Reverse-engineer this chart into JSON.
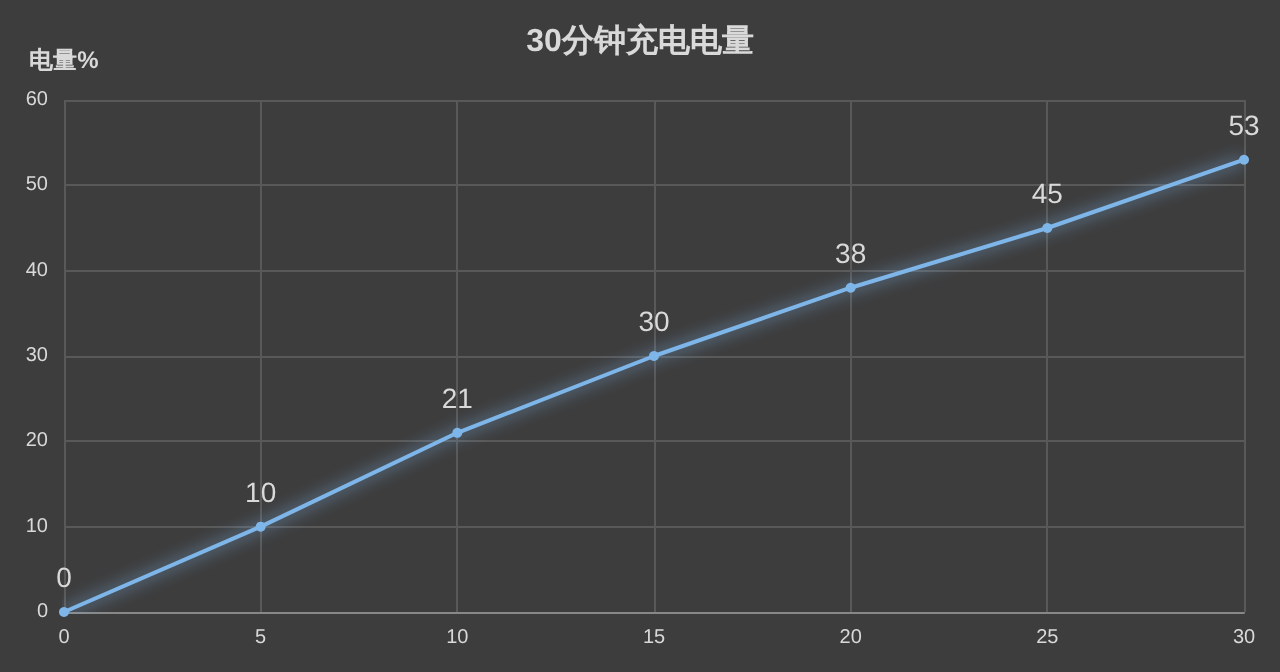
{
  "chart_data": {
    "type": "line",
    "title": "30分钟充电电量",
    "ylabel": "电量%",
    "x": [
      0,
      5,
      10,
      15,
      20,
      25,
      30
    ],
    "series": [
      {
        "color": "#7eb6ea",
        "values": [
          0,
          10,
          21,
          30,
          38,
          45,
          53
        ]
      }
    ],
    "xlim": [
      0,
      30
    ],
    "xticks": [
      0,
      5,
      10,
      15,
      20,
      25,
      30
    ],
    "ylim": [
      0,
      60
    ],
    "yticks": [
      0,
      10,
      20,
      30,
      40,
      50,
      60
    ],
    "grid": true,
    "marker": "circle",
    "data_labels": true,
    "line_style": "solid"
  }
}
